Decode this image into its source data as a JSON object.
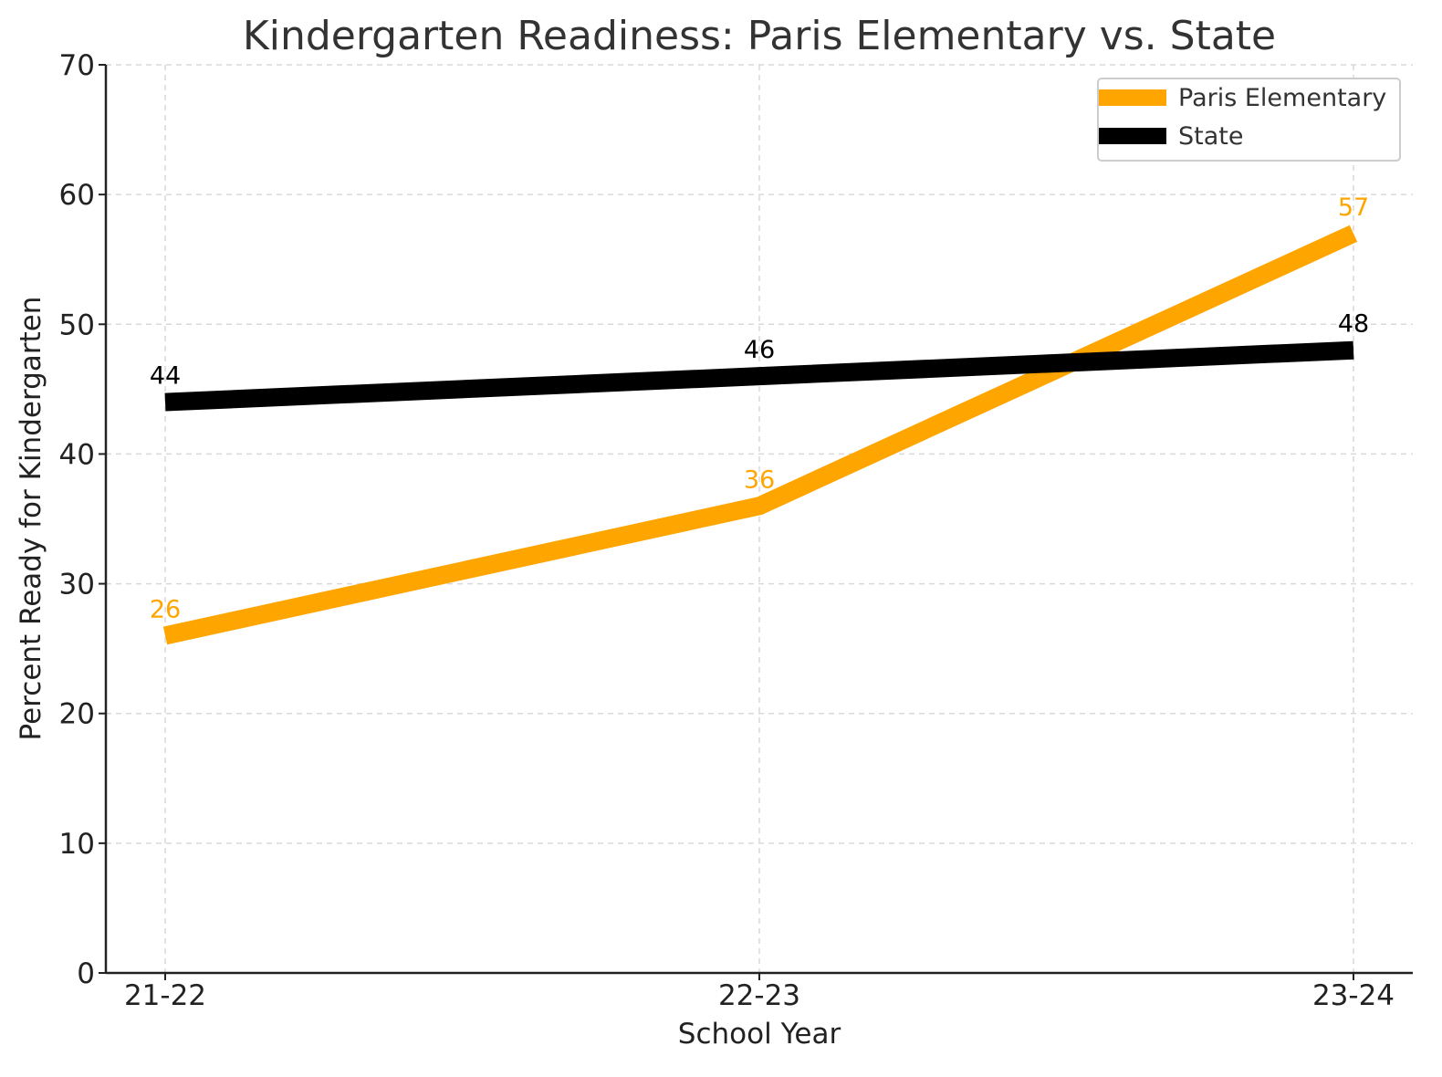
{
  "chart_data": {
    "type": "line",
    "title": "Kindergarten Readiness: Paris Elementary vs. State",
    "xlabel": "School Year",
    "ylabel": "Percent Ready for Kindergarten",
    "categories": [
      "21-22",
      "22-23",
      "23-24"
    ],
    "ylim": [
      0,
      70
    ],
    "yticks": [
      0,
      10,
      20,
      30,
      40,
      50,
      60,
      70
    ],
    "grid": true,
    "legend_position": "top-right",
    "series": [
      {
        "name": "Paris Elementary",
        "values": [
          26,
          36,
          57
        ],
        "color": "#FFA500"
      },
      {
        "name": "State",
        "values": [
          44,
          46,
          48
        ],
        "color": "#000000"
      }
    ]
  }
}
